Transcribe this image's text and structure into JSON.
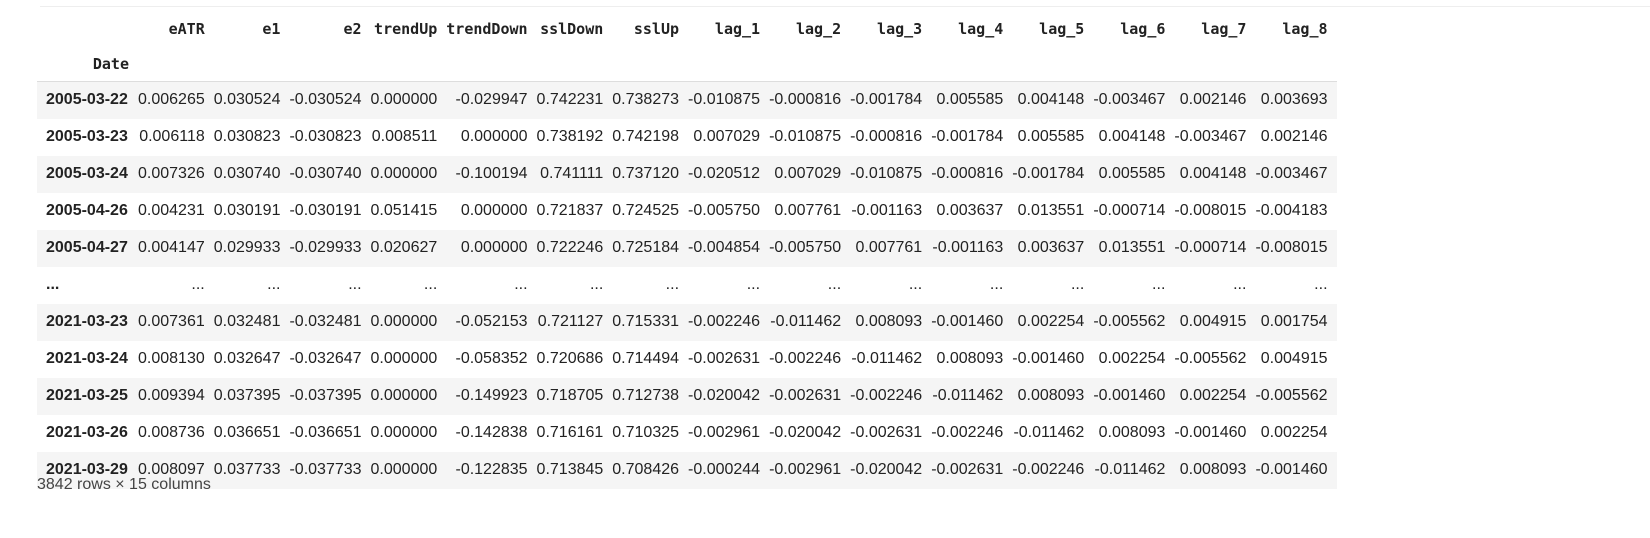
{
  "table": {
    "index_name": "Date",
    "columns": [
      "eATR",
      "e1",
      "e2",
      "trendUp",
      "trendDown",
      "sslDown",
      "sslUp",
      "lag_1",
      "lag_2",
      "lag_3",
      "lag_4",
      "lag_5",
      "lag_6",
      "lag_7",
      "lag_8"
    ],
    "rows": [
      {
        "index": "2005-03-22",
        "values": [
          "0.006265",
          "0.030524",
          "-0.030524",
          "0.000000",
          "-0.029947",
          "0.742231",
          "0.738273",
          "-0.010875",
          "-0.000816",
          "-0.001784",
          "0.005585",
          "0.004148",
          "-0.003467",
          "0.002146",
          "0.003693"
        ]
      },
      {
        "index": "2005-03-23",
        "values": [
          "0.006118",
          "0.030823",
          "-0.030823",
          "0.008511",
          "0.000000",
          "0.738192",
          "0.742198",
          "0.007029",
          "-0.010875",
          "-0.000816",
          "-0.001784",
          "0.005585",
          "0.004148",
          "-0.003467",
          "0.002146"
        ]
      },
      {
        "index": "2005-03-24",
        "values": [
          "0.007326",
          "0.030740",
          "-0.030740",
          "0.000000",
          "-0.100194",
          "0.741111",
          "0.737120",
          "-0.020512",
          "0.007029",
          "-0.010875",
          "-0.000816",
          "-0.001784",
          "0.005585",
          "0.004148",
          "-0.003467"
        ]
      },
      {
        "index": "2005-04-26",
        "values": [
          "0.004231",
          "0.030191",
          "-0.030191",
          "0.051415",
          "0.000000",
          "0.721837",
          "0.724525",
          "-0.005750",
          "0.007761",
          "-0.001163",
          "0.003637",
          "0.013551",
          "-0.000714",
          "-0.008015",
          "-0.004183"
        ]
      },
      {
        "index": "2005-04-27",
        "values": [
          "0.004147",
          "0.029933",
          "-0.029933",
          "0.020627",
          "0.000000",
          "0.722246",
          "0.725184",
          "-0.004854",
          "-0.005750",
          "0.007761",
          "-0.001163",
          "0.003637",
          "0.013551",
          "-0.000714",
          "-0.008015"
        ]
      },
      {
        "index": "...",
        "values": [
          "...",
          "...",
          "...",
          "...",
          "...",
          "...",
          "...",
          "...",
          "...",
          "...",
          "...",
          "...",
          "...",
          "...",
          "..."
        ]
      },
      {
        "index": "2021-03-23",
        "values": [
          "0.007361",
          "0.032481",
          "-0.032481",
          "0.000000",
          "-0.052153",
          "0.721127",
          "0.715331",
          "-0.002246",
          "-0.011462",
          "0.008093",
          "-0.001460",
          "0.002254",
          "-0.005562",
          "0.004915",
          "0.001754"
        ]
      },
      {
        "index": "2021-03-24",
        "values": [
          "0.008130",
          "0.032647",
          "-0.032647",
          "0.000000",
          "-0.058352",
          "0.720686",
          "0.714494",
          "-0.002631",
          "-0.002246",
          "-0.011462",
          "0.008093",
          "-0.001460",
          "0.002254",
          "-0.005562",
          "0.004915"
        ]
      },
      {
        "index": "2021-03-25",
        "values": [
          "0.009394",
          "0.037395",
          "-0.037395",
          "0.000000",
          "-0.149923",
          "0.718705",
          "0.712738",
          "-0.020042",
          "-0.002631",
          "-0.002246",
          "-0.011462",
          "0.008093",
          "-0.001460",
          "0.002254",
          "-0.005562"
        ]
      },
      {
        "index": "2021-03-26",
        "values": [
          "0.008736",
          "0.036651",
          "-0.036651",
          "0.000000",
          "-0.142838",
          "0.716161",
          "0.710325",
          "-0.002961",
          "-0.020042",
          "-0.002631",
          "-0.002246",
          "-0.011462",
          "0.008093",
          "-0.001460",
          "0.002254"
        ]
      },
      {
        "index": "2021-03-29",
        "values": [
          "0.008097",
          "0.037733",
          "-0.037733",
          "0.000000",
          "-0.122835",
          "0.713845",
          "0.708426",
          "-0.000244",
          "-0.002961",
          "-0.020042",
          "-0.002631",
          "-0.002246",
          "-0.011462",
          "0.008093",
          "-0.001460"
        ]
      }
    ]
  },
  "footer": "3842 rows × 15 columns"
}
